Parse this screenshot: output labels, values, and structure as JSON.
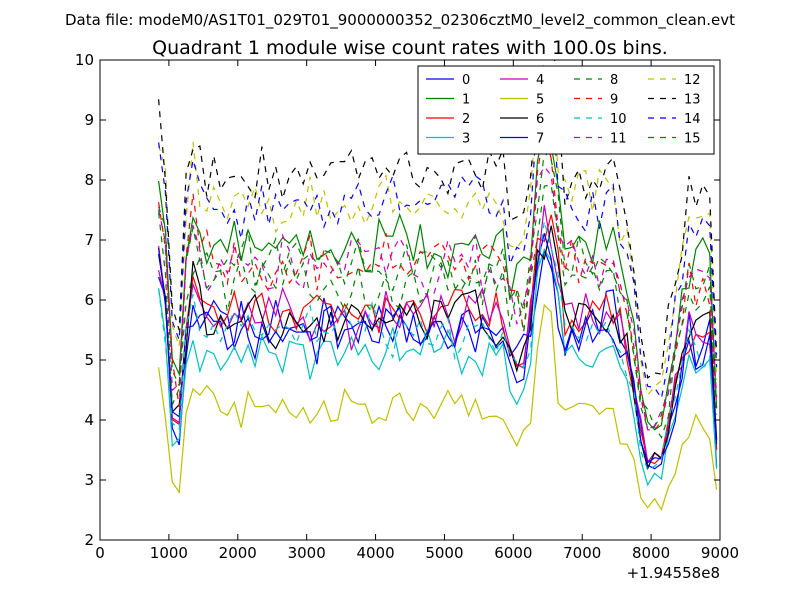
{
  "chart_data": {
    "type": "line",
    "suptitle": "Data file: modeM0/AS1T01_029T01_9000000352_02306cztM0_level2_common_clean.evt",
    "title": "Quadrant 1 module wise count rates with 100.0s bins.",
    "xlabel": "",
    "ylabel": "",
    "x_offset_label": "+1.94558e8",
    "xlim": [
      0,
      9000
    ],
    "ylim": [
      2,
      10
    ],
    "x_ticks": [
      0,
      1000,
      2000,
      3000,
      4000,
      5000,
      6000,
      7000,
      8000,
      9000
    ],
    "x_tick_labels": [
      "0",
      "1000",
      "2000",
      "3000",
      "4000",
      "5000",
      "6000",
      "7000",
      "8000",
      "9000"
    ],
    "y_ticks": [
      2,
      3,
      4,
      5,
      6,
      7,
      8,
      9,
      10
    ],
    "y_tick_labels": [
      "2",
      "3",
      "4",
      "5",
      "6",
      "7",
      "8",
      "9",
      "10"
    ],
    "grid": false,
    "legend_placement": "top-right",
    "legend_columns": 4,
    "x_range": [
      850,
      9000
    ],
    "bin_width": 100,
    "series": [
      {
        "name": "0",
        "color": "#0000ff",
        "dash": "solid",
        "level": 5.6,
        "noise": 0.3,
        "seed": 1
      },
      {
        "name": "1",
        "color": "#008000",
        "dash": "solid",
        "level": 6.9,
        "noise": 0.3,
        "seed": 2
      },
      {
        "name": "2",
        "color": "#ff0000",
        "dash": "solid",
        "level": 5.8,
        "noise": 0.28,
        "seed": 3
      },
      {
        "name": "3",
        "color": "#00bfbf",
        "dash": "solid",
        "level": 5.1,
        "noise": 0.25,
        "seed": 4
      },
      {
        "name": "4",
        "color": "#bf00bf",
        "dash": "solid",
        "level": 5.7,
        "noise": 0.28,
        "seed": 5
      },
      {
        "name": "5",
        "color": "#bfbf00",
        "dash": "solid",
        "level": 4.2,
        "noise": 0.25,
        "seed": 6
      },
      {
        "name": "6",
        "color": "#000000",
        "dash": "solid",
        "level": 5.7,
        "noise": 0.28,
        "seed": 7
      },
      {
        "name": "7",
        "color": "#0000ff",
        "dash": "solid",
        "level": 5.5,
        "noise": 0.3,
        "seed": 8
      },
      {
        "name": "8",
        "color": "#008000",
        "dash": "dashed",
        "level": 6.6,
        "noise": 0.3,
        "seed": 9
      },
      {
        "name": "9",
        "color": "#ff0000",
        "dash": "dashed",
        "level": 6.6,
        "noise": 0.3,
        "seed": 10
      },
      {
        "name": "10",
        "color": "#00bfbf",
        "dash": "dashed",
        "level": 5.5,
        "noise": 0.25,
        "seed": 11
      },
      {
        "name": "11",
        "color": "#bf00bf",
        "dash": "dashed",
        "level": 6.6,
        "noise": 0.28,
        "seed": 12
      },
      {
        "name": "12",
        "color": "#bfbf00",
        "dash": "dashed",
        "level": 7.6,
        "noise": 0.3,
        "seed": 13
      },
      {
        "name": "13",
        "color": "#000000",
        "dash": "dashed",
        "level": 8.1,
        "noise": 0.3,
        "seed": 14
      },
      {
        "name": "14",
        "color": "#0000ff",
        "dash": "dashed",
        "level": 7.6,
        "noise": 0.3,
        "seed": 15
      },
      {
        "name": "15",
        "color": "#008000",
        "dash": "dashed",
        "level": 6.3,
        "noise": 0.3,
        "seed": 16
      }
    ]
  }
}
